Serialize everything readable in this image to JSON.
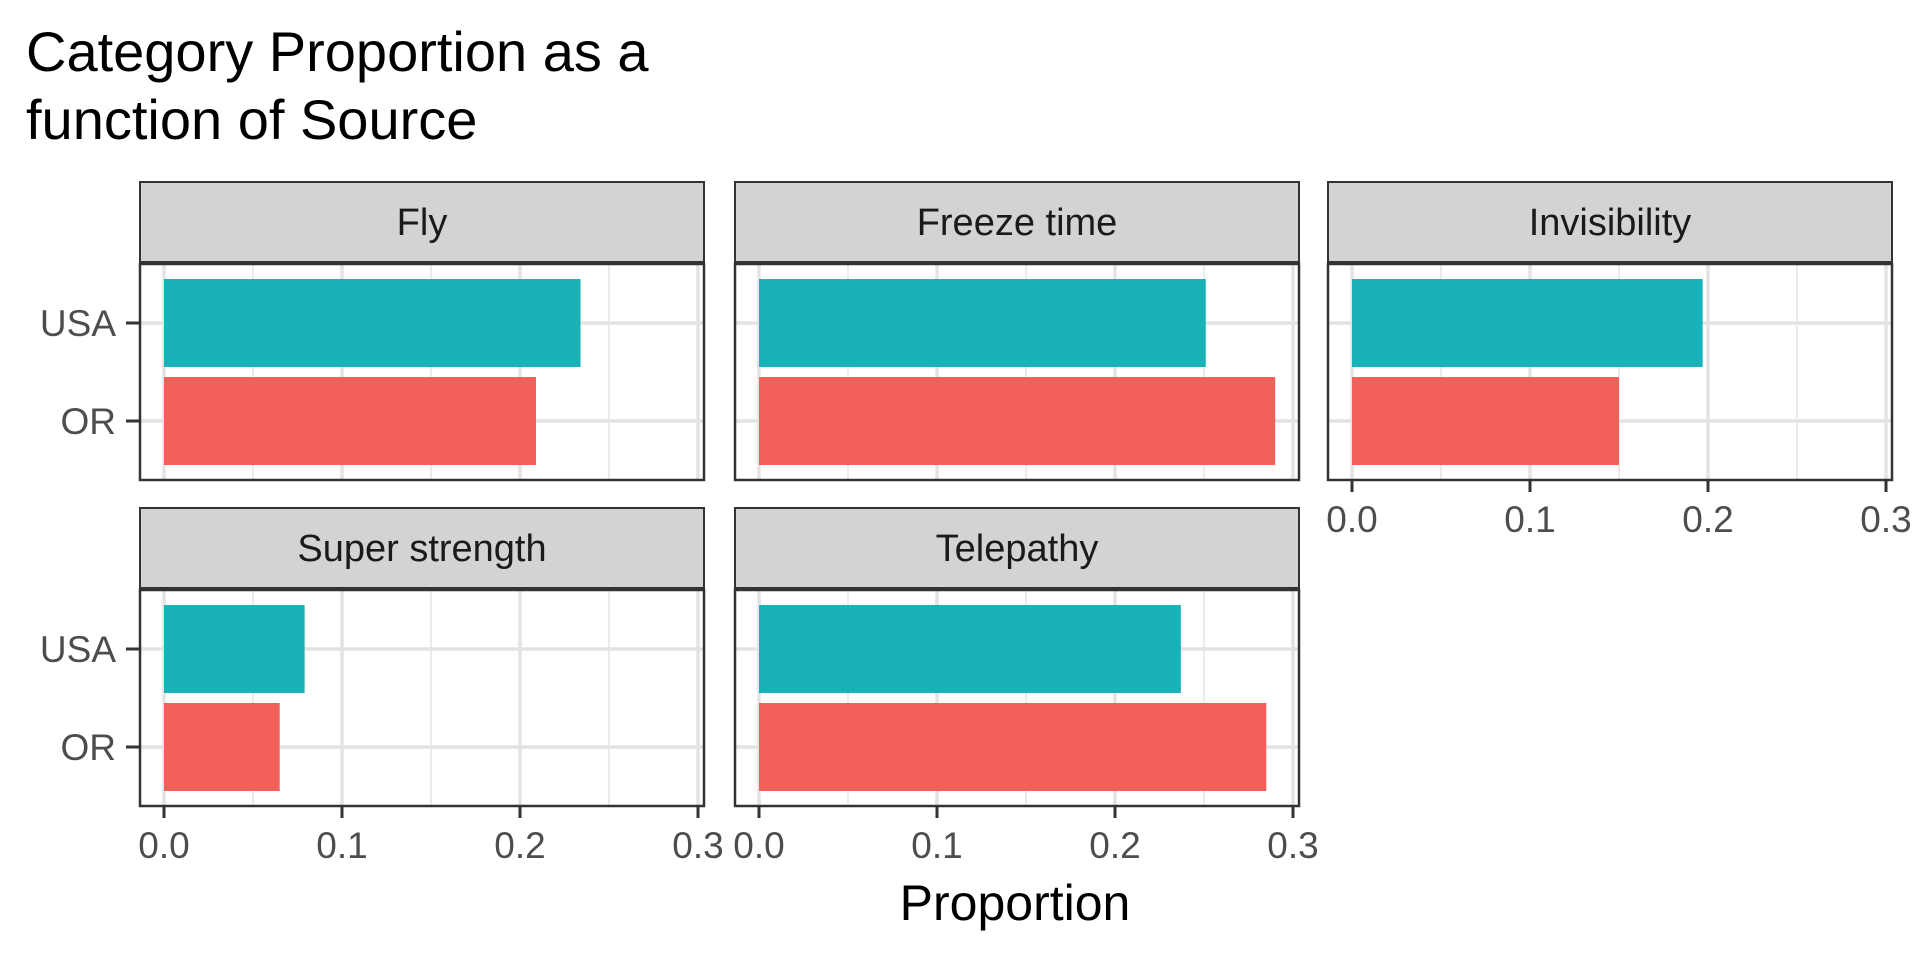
{
  "chart_data": {
    "type": "bar",
    "orientation": "horizontal",
    "title_line1": "Category Proportion as a",
    "title_line2": "function of Source",
    "xlabel": "Proportion",
    "ylabel": "",
    "xlim": [
      0,
      0.3
    ],
    "x_ticks": [
      "0.0",
      "0.1",
      "0.2",
      "0.3"
    ],
    "grid": true,
    "legend": "none",
    "categories": [
      "USA",
      "OR"
    ],
    "colors": {
      "USA": "#19b2b8",
      "OR": "#f2605c"
    },
    "facets": [
      {
        "name": "Fly",
        "values": {
          "USA": 0.234,
          "OR": 0.209
        }
      },
      {
        "name": "Freeze time",
        "values": {
          "USA": 0.251,
          "OR": 0.29
        }
      },
      {
        "name": "Invisibility",
        "values": {
          "USA": 0.197,
          "OR": 0.15
        }
      },
      {
        "name": "Super strength",
        "values": {
          "USA": 0.079,
          "OR": 0.065
        }
      },
      {
        "name": "Telepathy",
        "values": {
          "USA": 0.237,
          "OR": 0.285
        }
      }
    ]
  }
}
